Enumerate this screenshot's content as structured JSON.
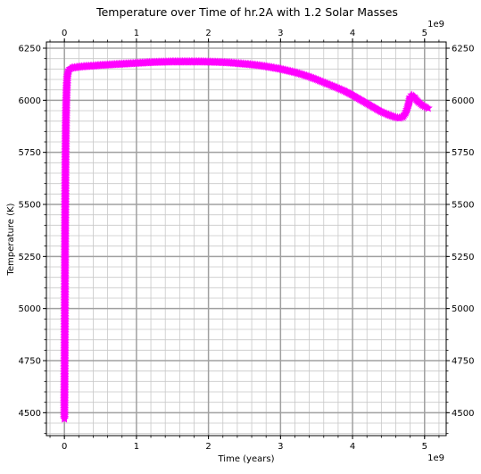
{
  "chart_data": {
    "type": "scatter",
    "title": "Temperature over Time of hr.2A with 1.2 Solar Masses",
    "xlabel": "Time (years)",
    "ylabel": "Temperature (K)",
    "x_offset_label": "1e9",
    "x_offset_label_top": "1e9",
    "xlim": [
      -250000000.0,
      5300000000.0
    ],
    "ylim": [
      4390,
      6280
    ],
    "x_ticks": [
      0,
      1000000000.0,
      2000000000.0,
      3000000000.0,
      4000000000.0,
      5000000000.0
    ],
    "x_tick_labels": [
      "0",
      "1",
      "2",
      "3",
      "4",
      "5"
    ],
    "x_minor_step": 200000000.0,
    "y_ticks": [
      4500,
      4750,
      5000,
      5250,
      5500,
      5750,
      6000,
      6250
    ],
    "y_tick_labels": [
      "4500",
      "4750",
      "5000",
      "5250",
      "5500",
      "5750",
      "6000",
      "6250"
    ],
    "y_minor_step": 50,
    "grid": true,
    "marker_color": "#ff00ff",
    "marker": "star",
    "series": [
      {
        "x": [
          0,
          0,
          0,
          2000000.0,
          4000000.0,
          6000000.0,
          8000000.0,
          10000000.0,
          13000000.0,
          16000000.0,
          20000000.0,
          25000000.0,
          30000000.0,
          35000000.0,
          40000000.0,
          50000000.0,
          60000000.0,
          80000000.0,
          100000000.0,
          200000000.0,
          300000000.0,
          400000000.0,
          500000000.0,
          600000000.0,
          700000000.0,
          800000000.0,
          900000000.0,
          1000000000.0,
          1100000000.0,
          1200000000.0,
          1300000000.0,
          1400000000.0,
          1500000000.0,
          1600000000.0,
          1700000000.0,
          1800000000.0,
          1900000000.0,
          2000000000.0,
          2100000000.0,
          2200000000.0,
          2300000000.0,
          2400000000.0,
          2500000000.0,
          2600000000.0,
          2700000000.0,
          2800000000.0,
          2900000000.0,
          3000000000.0,
          3100000000.0,
          3200000000.0,
          3300000000.0,
          3400000000.0,
          3500000000.0,
          3600000000.0,
          3700000000.0,
          3800000000.0,
          3900000000.0,
          4000000000.0,
          4100000000.0,
          4200000000.0,
          4300000000.0,
          4400000000.0,
          4500000000.0,
          4600000000.0,
          4650000000.0,
          4700000000.0,
          4740000000.0,
          4770000000.0,
          4790000000.0,
          4800000000.0,
          4820000000.0,
          4850000000.0,
          4880000000.0,
          4920000000.0,
          4960000000.0,
          5000000000.0,
          5050000000.0
        ],
        "y": [
          4470,
          4520,
          4560,
          4650,
          4800,
          5000,
          5200,
          5400,
          5600,
          5750,
          5880,
          5980,
          6040,
          6080,
          6110,
          6130,
          6145,
          6152,
          6155,
          6160,
          6163,
          6165,
          6168,
          6170,
          6172,
          6174,
          6176,
          6178,
          6180,
          6182,
          6183,
          6184,
          6185,
          6185,
          6185,
          6185,
          6185,
          6184,
          6183,
          6182,
          6180,
          6177,
          6174,
          6171,
          6167,
          6162,
          6156,
          6150,
          6142,
          6134,
          6124,
          6113,
          6100,
          6086,
          6072,
          6058,
          6043,
          6025,
          6005,
          5985,
          5965,
          5945,
          5930,
          5918,
          5915,
          5920,
          5940,
          5970,
          5995,
          6015,
          6025,
          6020,
          6005,
          5990,
          5978,
          5970,
          5962
        ]
      }
    ]
  }
}
